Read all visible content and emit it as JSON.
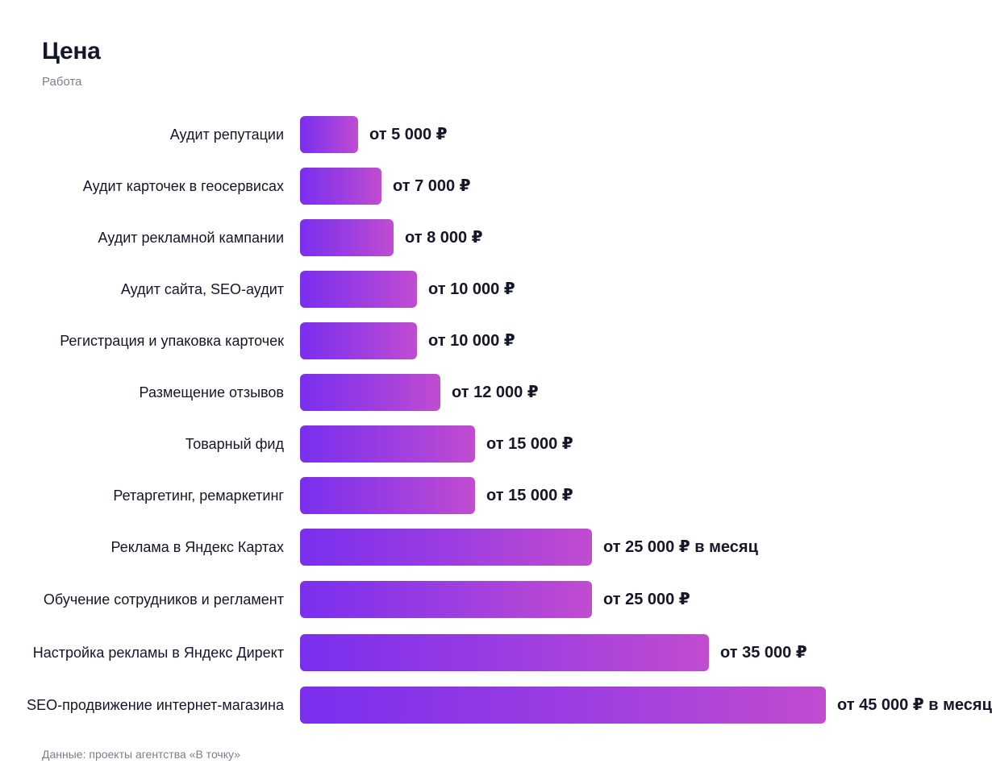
{
  "title": "Цена",
  "subtitle": "Работа",
  "source": "Данные: проекты агентства «В точку»",
  "colors": {
    "bar_start": "#7a2fee",
    "bar_end": "#c14cd0",
    "text": "#141728",
    "muted": "#7b7e8c"
  },
  "chart_data": {
    "type": "bar",
    "orientation": "horizontal",
    "title": "Цена",
    "subtitle": "Работа",
    "categories": [
      "Аудит репутации",
      "Аудит карточек в геосервисах",
      "Аудит рекламной кампании",
      "Аудит сайта, SEO-аудит",
      "Регистрация и упаковка карточек",
      "Размещение отзывов",
      "Товарный фид",
      "Ретаргетинг, ремаркетинг",
      "Реклама в Яндекс Картах",
      "Обучение сотрудников и регламент",
      "Настройка рекламы в Яндекс Директ",
      "SEO-продвижение интернет-магазина"
    ],
    "values": [
      5000,
      7000,
      8000,
      10000,
      10000,
      12000,
      15000,
      15000,
      25000,
      25000,
      35000,
      45000
    ],
    "value_labels": [
      "от 5 000 ₽",
      "от 7 000 ₽",
      "от 8 000 ₽",
      "от 10 000 ₽",
      "от 10 000 ₽",
      "от 12 000 ₽",
      "от 15 000 ₽",
      "от 15 000 ₽",
      "от 25 000 ₽ в месяц",
      "от 25 000 ₽",
      "от 35 000 ₽",
      "от 45 000 ₽ в месяц"
    ],
    "xlim": [
      0,
      45000
    ],
    "grid": false,
    "legend": "none"
  }
}
